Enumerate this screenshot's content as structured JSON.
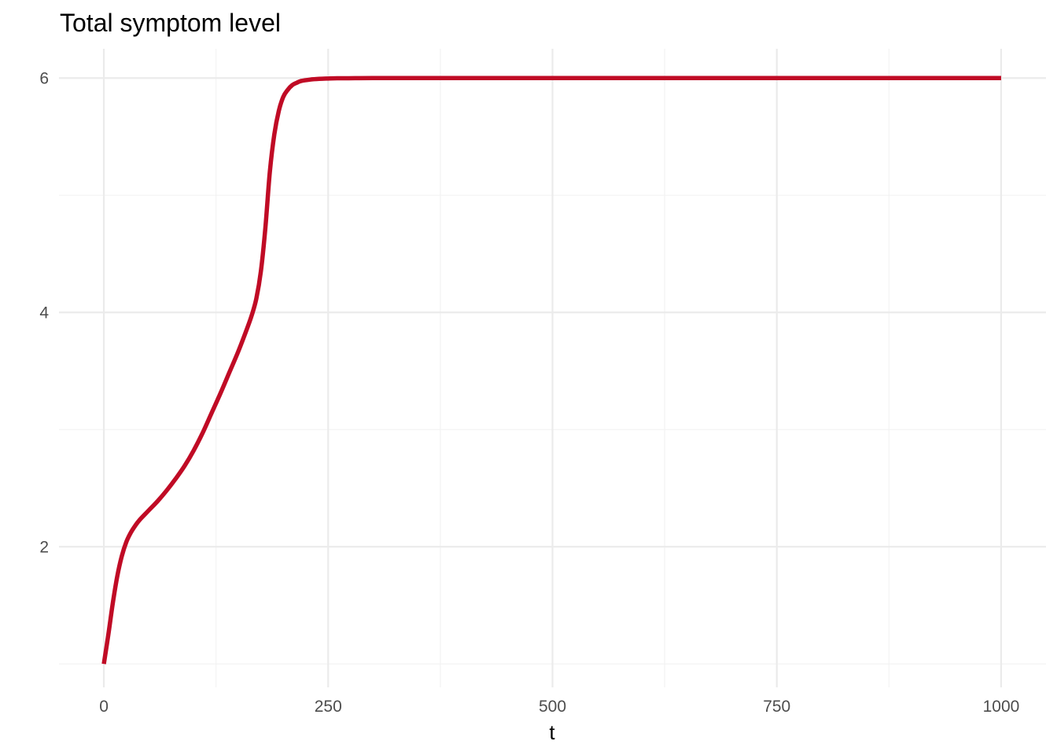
{
  "chart_data": {
    "type": "line",
    "title": "Total symptom level",
    "xlabel": "t",
    "ylabel": "",
    "xlim": [
      -50,
      1050
    ],
    "ylim": [
      0.8,
      6.25
    ],
    "x_ticks": [
      0,
      250,
      500,
      750,
      1000
    ],
    "x_tick_labels": [
      "0",
      "250",
      "500",
      "750",
      "1000"
    ],
    "x_minor_ticks": [
      125,
      375,
      625,
      875
    ],
    "y_ticks": [
      2,
      4,
      6
    ],
    "y_tick_labels": [
      "2",
      "4",
      "6"
    ],
    "y_minor_ticks": [
      1,
      3,
      5
    ],
    "grid": true,
    "series": [
      {
        "color": "#c00b25",
        "x": [
          0,
          5,
          10,
          15,
          20,
          25,
          30,
          35,
          40,
          50,
          60,
          70,
          80,
          90,
          100,
          110,
          120,
          130,
          140,
          150,
          160,
          165,
          170,
          175,
          180,
          185,
          190,
          195,
          200,
          205,
          210,
          215,
          220,
          230,
          240,
          250,
          260,
          280,
          300,
          400,
          500,
          600,
          700,
          800,
          900,
          1000
        ],
        "y": [
          1.0,
          1.25,
          1.52,
          1.75,
          1.92,
          2.04,
          2.12,
          2.18,
          2.23,
          2.31,
          2.39,
          2.48,
          2.58,
          2.69,
          2.82,
          2.97,
          3.14,
          3.31,
          3.49,
          3.67,
          3.87,
          3.98,
          4.12,
          4.35,
          4.72,
          5.2,
          5.52,
          5.72,
          5.84,
          5.9,
          5.94,
          5.96,
          5.975,
          5.987,
          5.993,
          5.996,
          5.998,
          5.999,
          6.0,
          6.0,
          6.0,
          6.0,
          6.0,
          6.0,
          6.0,
          6.0
        ]
      }
    ]
  },
  "colors": {
    "background": "#ffffff",
    "grid_major": "#ebebeb",
    "grid_minor": "#f2f2f2",
    "line": "#c00b25",
    "tick_text": "#4d4d4d",
    "text": "#000000"
  }
}
